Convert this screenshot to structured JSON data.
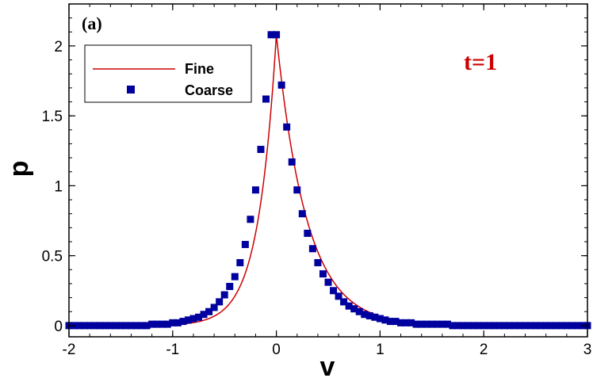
{
  "chart_data": {
    "type": "line",
    "panel_label": "(a)",
    "annotation": "t=1",
    "xlabel": "v",
    "ylabel": "p",
    "xlim": [
      -2,
      3
    ],
    "ylim": [
      -0.08,
      2.3
    ],
    "x_ticks": [
      "-2",
      "-1",
      "0",
      "1",
      "2",
      "3"
    ],
    "y_ticks": [
      "0",
      "0.5",
      "1",
      "1.5",
      "2"
    ],
    "grid": false,
    "legend_position": "top-left",
    "colors": {
      "fine": "#cc0000",
      "coarse": "#00009f",
      "annotation": "#cc0000"
    },
    "series": [
      {
        "name": "Fine",
        "style": "line",
        "peak": 2.08,
        "decay_left": 5.72,
        "decay_right": 3.43,
        "x_range": [
          -2,
          3
        ]
      },
      {
        "name": "Coarse",
        "style": "square-markers",
        "x": [
          -2.0,
          -1.95,
          -1.9,
          -1.85,
          -1.8,
          -1.75,
          -1.7,
          -1.65,
          -1.6,
          -1.55,
          -1.5,
          -1.45,
          -1.4,
          -1.35,
          -1.3,
          -1.25,
          -1.2,
          -1.15,
          -1.1,
          -1.05,
          -1.0,
          -0.95,
          -0.9,
          -0.85,
          -0.8,
          -0.75,
          -0.7,
          -0.65,
          -0.6,
          -0.55,
          -0.5,
          -0.45,
          -0.4,
          -0.35,
          -0.3,
          -0.25,
          -0.2,
          -0.15,
          -0.1,
          -0.05,
          0.0,
          0.05,
          0.1,
          0.15,
          0.2,
          0.25,
          0.3,
          0.35,
          0.4,
          0.45,
          0.5,
          0.55,
          0.6,
          0.65,
          0.7,
          0.75,
          0.8,
          0.85,
          0.9,
          0.95,
          1.0,
          1.05,
          1.1,
          1.15,
          1.2,
          1.25,
          1.3,
          1.35,
          1.4,
          1.45,
          1.5,
          1.55,
          1.6,
          1.65,
          1.7,
          1.75,
          1.8,
          1.85,
          1.9,
          1.95,
          2.0,
          2.05,
          2.1,
          2.15,
          2.2,
          2.25,
          2.3,
          2.35,
          2.4,
          2.45,
          2.5,
          2.55,
          2.6,
          2.65,
          2.7,
          2.75,
          2.8,
          2.85,
          2.9,
          2.95,
          3.0
        ],
        "y": [
          0.0,
          0.0,
          0.0,
          0.0,
          0.0,
          0.0,
          0.0,
          0.0,
          0.0,
          0.0,
          0.0,
          0.0,
          0.0,
          0.0,
          0.0,
          0.0,
          0.01,
          0.01,
          0.01,
          0.01,
          0.02,
          0.02,
          0.03,
          0.04,
          0.05,
          0.06,
          0.08,
          0.1,
          0.13,
          0.17,
          0.22,
          0.28,
          0.35,
          0.45,
          0.58,
          0.76,
          0.97,
          1.26,
          1.62,
          2.08,
          2.08,
          1.72,
          1.42,
          1.17,
          0.97,
          0.8,
          0.66,
          0.55,
          0.45,
          0.37,
          0.31,
          0.25,
          0.21,
          0.17,
          0.14,
          0.12,
          0.1,
          0.08,
          0.07,
          0.06,
          0.05,
          0.04,
          0.03,
          0.03,
          0.02,
          0.02,
          0.02,
          0.01,
          0.01,
          0.01,
          0.01,
          0.01,
          0.01,
          0.01,
          0.0,
          0.0,
          0.0,
          0.0,
          0.0,
          0.0,
          0.0,
          0.0,
          0.0,
          0.0,
          0.0,
          0.0,
          0.0,
          0.0,
          0.0,
          0.0,
          0.0,
          0.0,
          0.0,
          0.0,
          0.0,
          0.0,
          0.0,
          0.0,
          0.0,
          0.0,
          0.0
        ]
      }
    ]
  }
}
